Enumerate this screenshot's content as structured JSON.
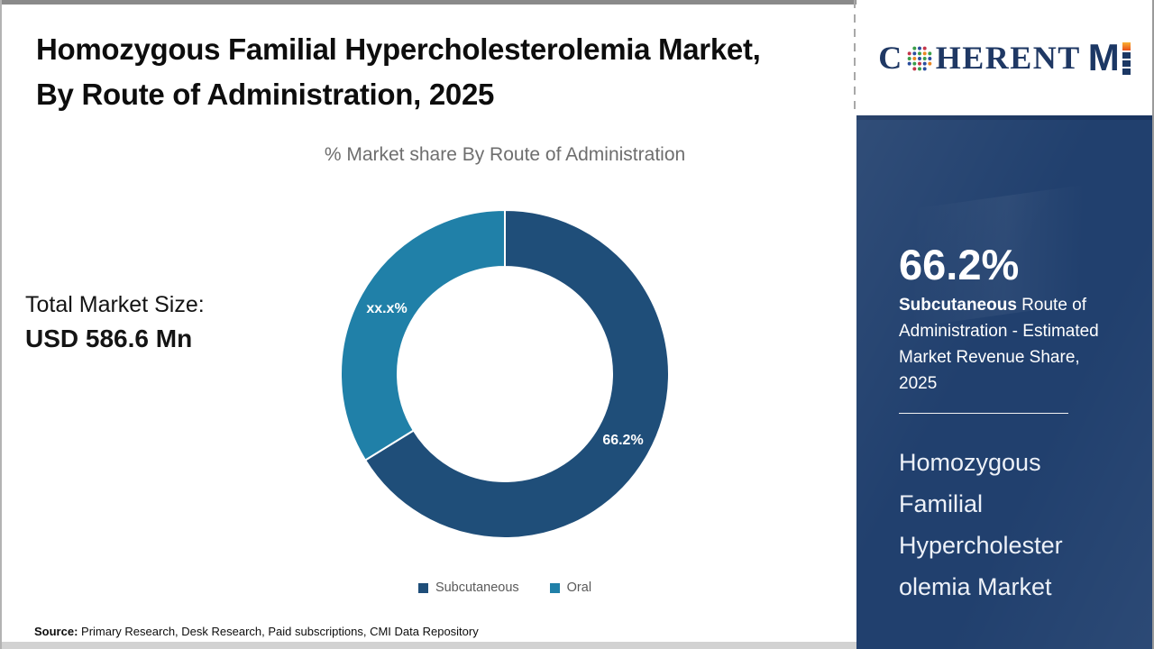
{
  "header": {
    "title": "Homozygous Familial Hypercholesterolemia Market, By Route of Administration, 2025"
  },
  "logo": {
    "brand_prefix": "C",
    "brand_rest": "HERENT",
    "brand_m": "M"
  },
  "main": {
    "total_market_label": "Total Market Size:",
    "total_market_value": "USD 586.6 Mn"
  },
  "chart_data": {
    "type": "pie",
    "subtype": "donut",
    "title": "% Market share By Route of Administration",
    "categories": [
      "Subcutaneous",
      "Oral"
    ],
    "values": [
      66.2,
      33.8
    ],
    "slice_labels": [
      "66.2%",
      "xx.x%"
    ],
    "colors": [
      "#1F4E79",
      "#2080A8"
    ],
    "start_angle_deg": 0,
    "direction": "clockwise",
    "legend_position": "bottom"
  },
  "sidebar": {
    "highlight_value": "66.2%",
    "highlight_bold": "Subcutaneous",
    "highlight_rest": " Route of Administration - Estimated Market Revenue Share, 2025",
    "market_name_lines": [
      "Homozygous",
      "Familial",
      "Hypercholester",
      "olemia Market"
    ]
  },
  "footer": {
    "source_label": "Source:",
    "source_text": " Primary Research, Desk Research, Paid subscriptions, CMI Data Repository"
  }
}
